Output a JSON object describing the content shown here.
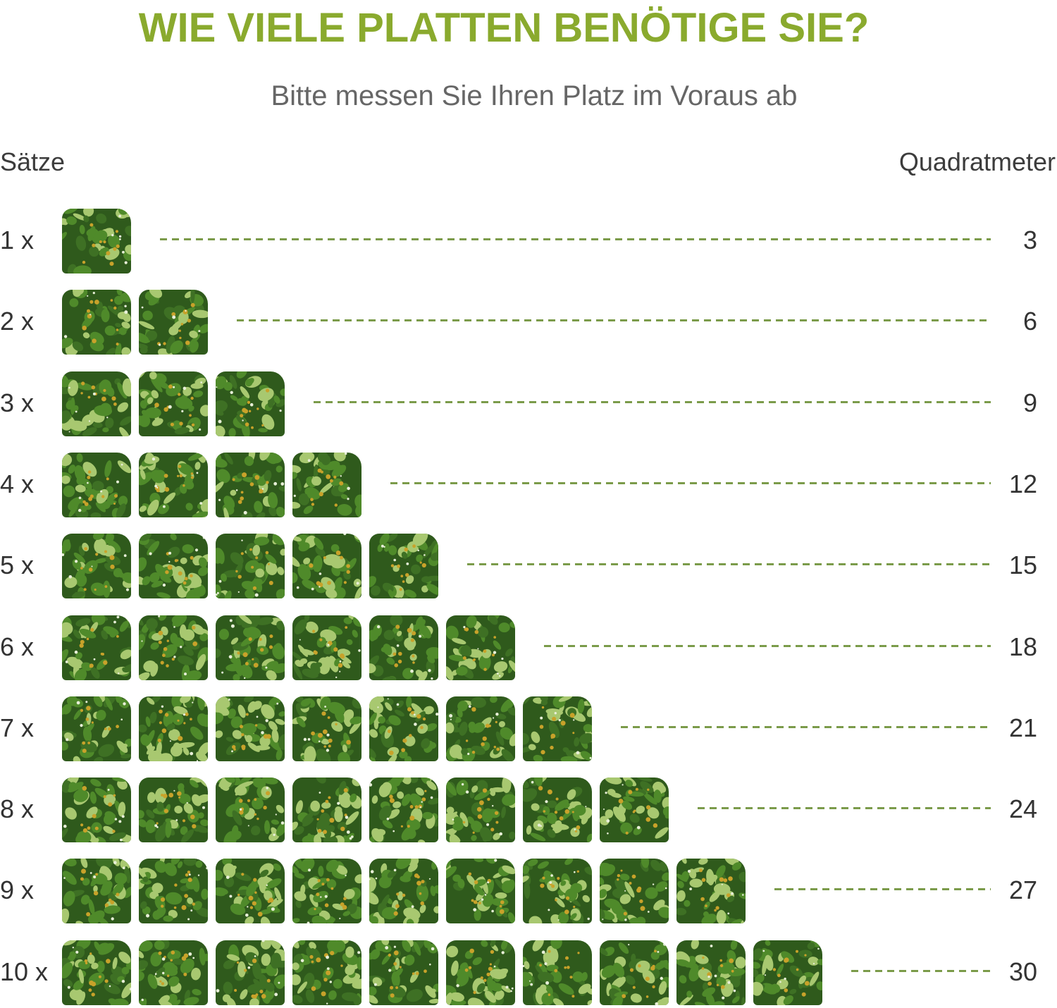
{
  "header": {
    "title": "WIE VIELE PLATTEN BENÖTIGE SIE?",
    "subtitle": "Bitte messen Sie Ihren Platz im Voraus ab",
    "left_label": "Sätze",
    "right_label": "Quadratmeter"
  },
  "colors": {
    "title": "#8aaa2e",
    "dash": "#7b9b4a",
    "leaf_dark": "#2f5a1c",
    "leaf_mid": "#4f8a2a",
    "leaf_light": "#a8c870",
    "flower": "#c8a22a"
  },
  "rows": [
    {
      "label": "1 x",
      "count": 1,
      "value": "3"
    },
    {
      "label": "2 x",
      "count": 2,
      "value": "6"
    },
    {
      "label": "3 x",
      "count": 3,
      "value": "9"
    },
    {
      "label": "4 x",
      "count": 4,
      "value": "12"
    },
    {
      "label": "5 x",
      "count": 5,
      "value": "15"
    },
    {
      "label": "6 x",
      "count": 6,
      "value": "18"
    },
    {
      "label": "7 x",
      "count": 7,
      "value": "21"
    },
    {
      "label": "8 x",
      "count": 8,
      "value": "24"
    },
    {
      "label": "9 x",
      "count": 9,
      "value": "27"
    },
    {
      "label": "10 x",
      "count": 10,
      "value": "30"
    }
  ],
  "icons": {
    "tile": "green-wall-panel-icon"
  }
}
